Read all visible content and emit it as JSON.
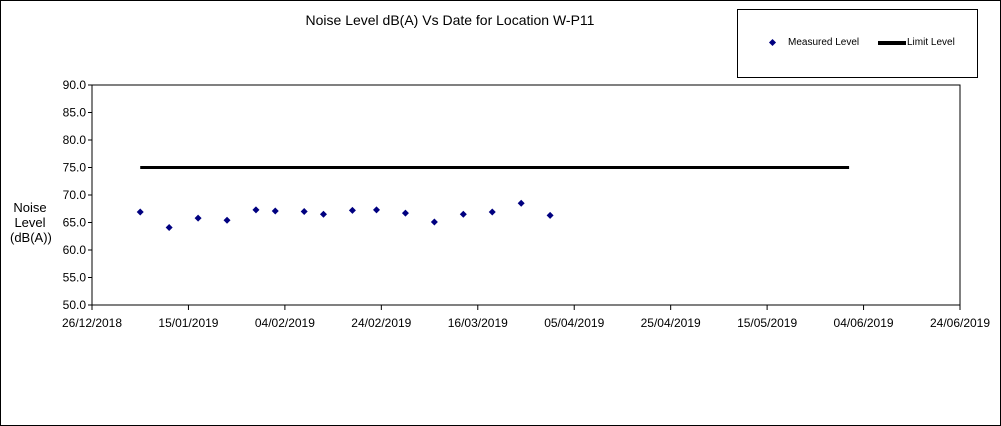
{
  "chart_data": {
    "type": "scatter",
    "title": "Noise Level dB(A) Vs Date for Location W-P11",
    "ylabel": "Noise Level (dB(A))",
    "ylabel_lines": [
      "Noise Level",
      "(dB(A))"
    ],
    "xlabel": "",
    "ylim": [
      50,
      90
    ],
    "xlim": [
      "2018-12-26",
      "2019-06-24"
    ],
    "y_ticks": [
      "90.0",
      "85.0",
      "80.0",
      "75.0",
      "70.0",
      "65.0",
      "60.0",
      "55.0",
      "50.0"
    ],
    "x_ticks": [
      "26/12/2018",
      "15/01/2019",
      "04/02/2019",
      "24/02/2019",
      "16/03/2019",
      "05/04/2019",
      "25/04/2019",
      "15/05/2019",
      "04/06/2019",
      "24/06/2019"
    ],
    "legend": {
      "position": "top-right",
      "entries": [
        "Measured Level",
        "Limit Level"
      ]
    },
    "grid": false,
    "series": [
      {
        "name": "Measured Level",
        "type": "scatter",
        "color": "#000080",
        "points": [
          {
            "x": "2019-01-05",
            "y": 66.9
          },
          {
            "x": "2019-01-11",
            "y": 64.1
          },
          {
            "x": "2019-01-17",
            "y": 65.8
          },
          {
            "x": "2019-01-23",
            "y": 65.4
          },
          {
            "x": "2019-01-29",
            "y": 67.3
          },
          {
            "x": "2019-02-02",
            "y": 67.1
          },
          {
            "x": "2019-02-08",
            "y": 67.0
          },
          {
            "x": "2019-02-12",
            "y": 66.5
          },
          {
            "x": "2019-02-18",
            "y": 67.2
          },
          {
            "x": "2019-02-23",
            "y": 67.3
          },
          {
            "x": "2019-03-01",
            "y": 66.7
          },
          {
            "x": "2019-03-07",
            "y": 65.1
          },
          {
            "x": "2019-03-13",
            "y": 66.5
          },
          {
            "x": "2019-03-19",
            "y": 66.9
          },
          {
            "x": "2019-03-25",
            "y": 68.5
          },
          {
            "x": "2019-03-31",
            "y": 66.3
          }
        ]
      },
      {
        "name": "Limit Level",
        "type": "line",
        "color": "#000000",
        "points": [
          {
            "x": "2019-01-05",
            "y": 75.0
          },
          {
            "x": "2019-06-01",
            "y": 75.0
          }
        ]
      }
    ]
  }
}
